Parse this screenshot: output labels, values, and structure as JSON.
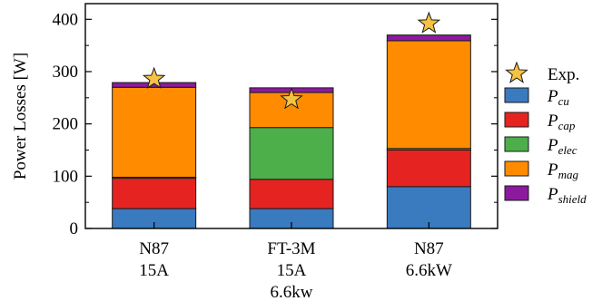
{
  "chart_data": {
    "type": "bar",
    "stacked": true,
    "categories": [
      [
        "N87",
        "15A"
      ],
      [
        "FT-3M",
        "15A",
        "6.6kw"
      ],
      [
        "N87",
        "6.6kW"
      ]
    ],
    "ylabel": "Power Losses [W]",
    "ylim": [
      0,
      430
    ],
    "yticks": [
      0,
      100,
      200,
      300,
      400
    ],
    "grid": false,
    "legend_position": "right",
    "series": [
      {
        "key": "cu",
        "name_main": "P",
        "name_sub": "cu",
        "color": "#3a7abf",
        "values": [
          38,
          38,
          80
        ]
      },
      {
        "key": "cap",
        "name_main": "P",
        "name_sub": "cap",
        "color": "#e52421",
        "values": [
          58,
          56,
          70
        ]
      },
      {
        "key": "elec",
        "name_main": "P",
        "name_sub": "elec",
        "color": "#4daf4a",
        "values": [
          2,
          99,
          3
        ]
      },
      {
        "key": "mag",
        "name_main": "P",
        "name_sub": "mag",
        "color": "#ff8c00",
        "values": [
          172,
          67,
          206
        ]
      },
      {
        "key": "shield",
        "name_main": "P",
        "name_sub": "shield",
        "color": "#8b1a9e",
        "values": [
          9,
          9,
          11
        ]
      }
    ],
    "experimental": {
      "name": "Exp.",
      "color": "#f5c242",
      "values": [
        286,
        247,
        392
      ]
    }
  }
}
